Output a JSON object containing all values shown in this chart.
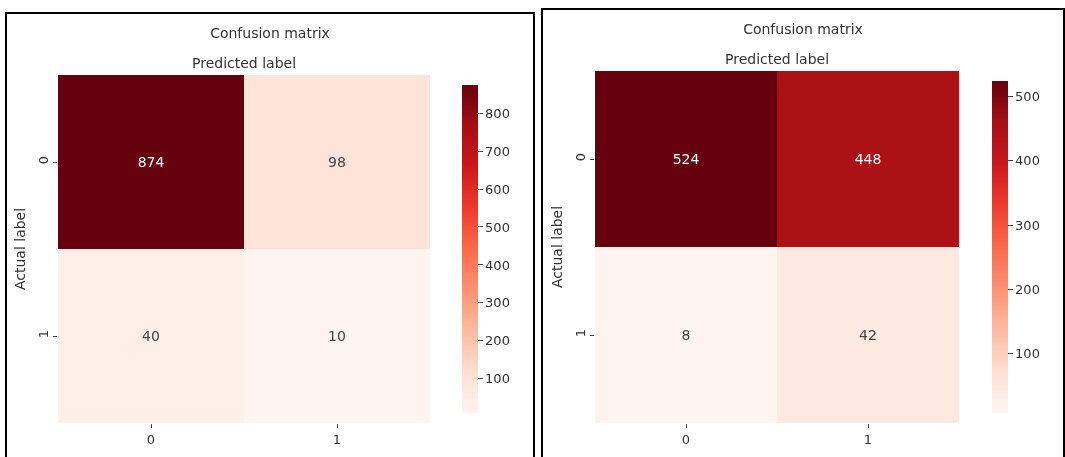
{
  "chart_data": [
    {
      "type": "heatmap",
      "title": "Confusion matrix",
      "xlabel": "Predicted label",
      "ylabel": "Actual label",
      "categories": [
        "0",
        "1"
      ],
      "y_categories": [
        "0",
        "1"
      ],
      "cells": [
        [
          874,
          98
        ],
        [
          40,
          10
        ]
      ],
      "clim": [
        10,
        874
      ],
      "cticks": [
        100,
        200,
        300,
        400,
        500,
        600,
        700,
        800
      ],
      "data_labels": true
    },
    {
      "type": "heatmap",
      "title": "Confusion matrix",
      "xlabel": "Predicted label",
      "ylabel": "Actual label",
      "categories": [
        "0",
        "1"
      ],
      "y_categories": [
        "0",
        "1"
      ],
      "cells": [
        [
          524,
          448
        ],
        [
          8,
          42
        ]
      ],
      "clim": [
        8,
        524
      ],
      "cticks": [
        100,
        200,
        300,
        400,
        500
      ],
      "data_labels": true
    }
  ]
}
